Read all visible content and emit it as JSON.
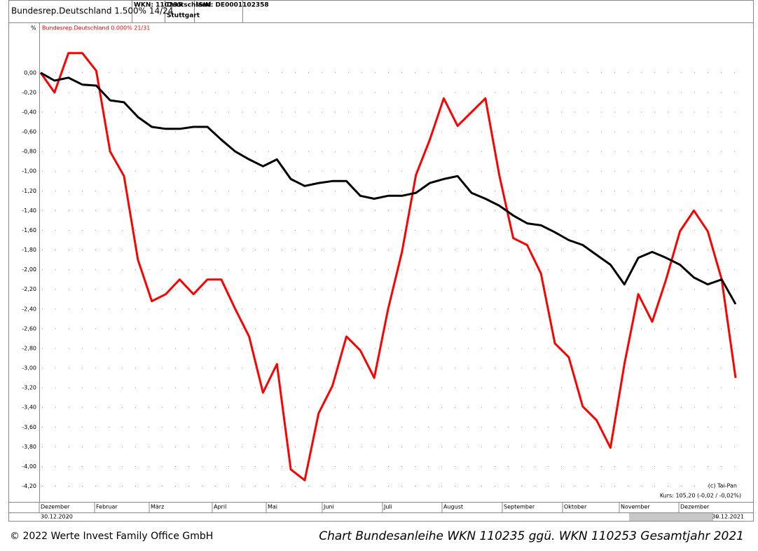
{
  "header": {
    "title": "Bundesrep.Deutschland 1.500% 14/24",
    "wkn": "WKN: 110235",
    "exchange_line1": "Deutschland",
    "exchange_line2": "Stuttgart",
    "isin": "ISIN: DE0001102358"
  },
  "chart_data": {
    "type": "line",
    "unit_label": "%",
    "legend_text": "Bundesrep.Deutschland 0.000% 21/31",
    "copyright": "(c) Tai-Pan",
    "quote": "Kurs: 105,20 (-0,02 / -0,02%)",
    "month_labels": [
      "Dezember",
      "Februar",
      "März",
      "April",
      "Mai",
      "Juni",
      "Juli",
      "August",
      "September",
      "Oktober",
      "November",
      "Dezember"
    ],
    "start_date": "30.12.2020",
    "end_date": "30.12.2021",
    "ylim": [
      -4.36,
      0.49
    ],
    "yticks": [
      {
        "value": 0,
        "label": "0,00"
      },
      {
        "value": -0.2,
        "label": "-0,20"
      },
      {
        "value": -0.4,
        "label": "-0,40"
      },
      {
        "value": -0.6,
        "label": "-0,60"
      },
      {
        "value": -0.8,
        "label": "-0,80"
      },
      {
        "value": -1.0,
        "label": "-1,00"
      },
      {
        "value": -1.2,
        "label": "-1,20"
      },
      {
        "value": -1.4,
        "label": "-1,40"
      },
      {
        "value": -1.6,
        "label": "-1,60"
      },
      {
        "value": -1.8,
        "label": "-1,80"
      },
      {
        "value": -2.0,
        "label": "-2,00"
      },
      {
        "value": -2.2,
        "label": "-2,20"
      },
      {
        "value": -2.4,
        "label": "-2,40"
      },
      {
        "value": -2.6,
        "label": "-2,60"
      },
      {
        "value": -2.8,
        "label": "-2,80"
      },
      {
        "value": -3.0,
        "label": "-3,00"
      },
      {
        "value": -3.2,
        "label": "-3,20"
      },
      {
        "value": -3.4,
        "label": "-3,40"
      },
      {
        "value": -3.6,
        "label": "-3,60"
      },
      {
        "value": -3.8,
        "label": "-3,80"
      },
      {
        "value": -4.0,
        "label": "-4,00"
      },
      {
        "value": -4.2,
        "label": "-4,20"
      }
    ],
    "grid": true,
    "series": [
      {
        "color": "#000000",
        "values": [
          0.0,
          -0.08,
          -0.05,
          -0.12,
          -0.13,
          -0.28,
          -0.3,
          -0.45,
          -0.55,
          -0.57,
          -0.57,
          -0.55,
          -0.55,
          -0.68,
          -0.8,
          -0.88,
          -0.95,
          -0.88,
          -1.08,
          -1.15,
          -1.12,
          -1.1,
          -1.1,
          -1.25,
          -1.28,
          -1.25,
          -1.25,
          -1.22,
          -1.12,
          -1.08,
          -1.05,
          -1.22,
          -1.28,
          -1.35,
          -1.45,
          -1.53,
          -1.55,
          -1.62,
          -1.7,
          -1.75,
          -1.85,
          -1.95,
          -2.15,
          -1.88,
          -1.82,
          -1.88,
          -1.95,
          -2.08,
          -2.15,
          -2.1,
          -2.35
        ]
      },
      {
        "color": "#ff0000",
        "values": [
          0.0,
          -0.2,
          0.2,
          0.2,
          0.02,
          -0.8,
          -1.05,
          -1.9,
          -2.32,
          -2.25,
          -2.1,
          -2.25,
          -2.1,
          -2.1,
          -2.4,
          -2.68,
          -3.25,
          -2.96,
          -4.03,
          -4.14,
          -3.46,
          -3.18,
          -2.68,
          -2.82,
          -3.1,
          -2.4,
          -1.82,
          -1.04,
          -0.68,
          -0.26,
          -0.54,
          -0.4,
          -0.26,
          -1.04,
          -1.68,
          -1.75,
          -2.04,
          -2.75,
          -2.89,
          -3.39,
          -3.53,
          -3.81,
          -2.96,
          -2.25,
          -2.53,
          -2.1,
          -1.61,
          -1.4,
          -1.61,
          -2.1,
          -3.1
        ]
      }
    ]
  },
  "footer": {
    "left": "© 2022 Werte Invest Family Office GmbH",
    "right": "Chart Bundesanleihe WKN 110235 ggü. WKN 110253 Gesamtjahr 2021"
  }
}
